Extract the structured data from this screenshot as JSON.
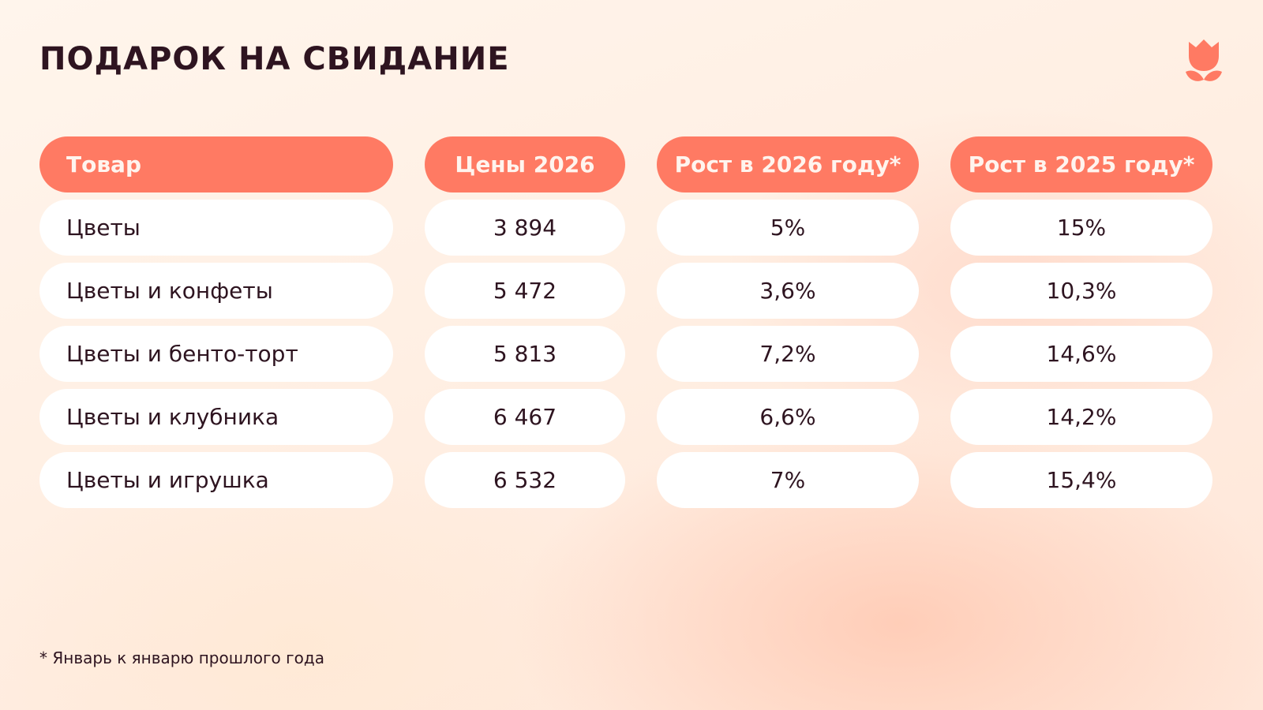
{
  "title": "ПОДАРОК НА СВИДАНИЕ",
  "logo": {
    "icon": "tulip-icon",
    "color": "#ff7a63"
  },
  "table": {
    "headers": [
      "Товар",
      "Цены 2026",
      "Рост в 2026 году*",
      "Рост в 2025 году*"
    ],
    "rows": [
      [
        "Цветы",
        "3 894",
        "5%",
        "15%"
      ],
      [
        "Цветы и конфеты",
        "5 472",
        "3,6%",
        "10,3%"
      ],
      [
        "Цветы и бенто-торт",
        "5 813",
        "7,2%",
        "14,6%"
      ],
      [
        "Цветы и клубника",
        "6 467",
        "6,6%",
        "14,2%"
      ],
      [
        "Цветы и игрушка",
        "6 532",
        "7%",
        "15,4%"
      ]
    ]
  },
  "footnote": "* Январь к январю прошлого года",
  "colors": {
    "accent": "#ff7a63",
    "text": "#2e1420",
    "cell_bg": "#ffffff"
  }
}
